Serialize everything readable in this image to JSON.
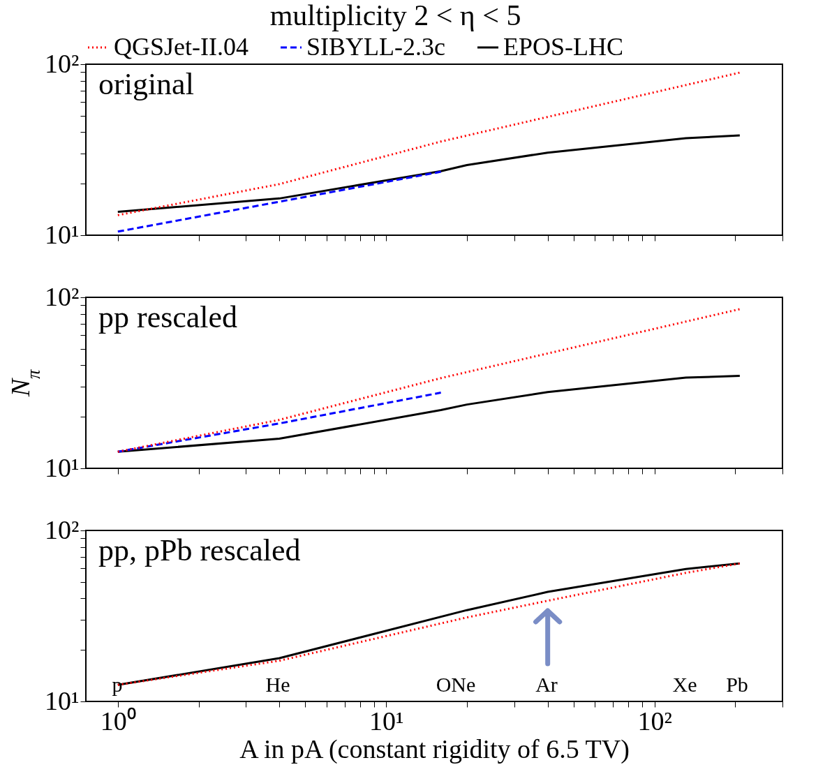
{
  "chart_data": [
    {
      "type": "line",
      "title": "multiplicity 2 < η < 5",
      "annotations": [
        "original"
      ],
      "log": "xy",
      "legend": "top",
      "tick_labels": "y",
      "grid": false,
      "xlim": [
        0.76,
        300
      ],
      "xticks": [
        {
          "value": 1,
          "label": null
        },
        {
          "value": 2,
          "label": null
        },
        {
          "value": 3,
          "label": null
        },
        {
          "value": 4,
          "label": null
        },
        {
          "value": 5,
          "label": null
        },
        {
          "value": 6,
          "label": null
        },
        {
          "value": 7,
          "label": null
        },
        {
          "value": 8,
          "label": null
        },
        {
          "value": 9,
          "label": null
        },
        {
          "value": 10,
          "label": null
        },
        {
          "value": 20,
          "label": null
        },
        {
          "value": 30,
          "label": null
        },
        {
          "value": 40,
          "label": null
        },
        {
          "value": 50,
          "label": null
        },
        {
          "value": 60,
          "label": null
        },
        {
          "value": 70,
          "label": null
        },
        {
          "value": 80,
          "label": null
        },
        {
          "value": 90,
          "label": null
        },
        {
          "value": 100,
          "label": null
        },
        {
          "value": 200,
          "label": null
        },
        {
          "value": 300,
          "label": null
        }
      ],
      "ylim": [
        10,
        100
      ],
      "yticks": [
        {
          "value": 10,
          "label": "10¹"
        },
        {
          "value": 20,
          "label": null
        },
        {
          "value": 30,
          "label": null
        },
        {
          "value": 40,
          "label": null
        },
        {
          "value": 50,
          "label": null
        },
        {
          "value": 60,
          "label": null
        },
        {
          "value": 70,
          "label": null
        },
        {
          "value": 80,
          "label": null
        },
        {
          "value": 90,
          "label": null
        },
        {
          "value": 100,
          "label": "10²"
        }
      ],
      "series": [
        {
          "name": "QGSJet-II.04",
          "color": "#ff0000",
          "line_style": "dotted",
          "x": [
            1,
            4,
            16,
            208
          ],
          "values": [
            13.1,
            19.9,
            35.3,
            89.3
          ]
        },
        {
          "name": "SIBYLL-2.3c",
          "color": "#0000ff",
          "line_style": "dashed",
          "x": [
            1,
            4,
            16
          ],
          "values": [
            10.5,
            15.7,
            23.5
          ]
        },
        {
          "name": "EPOS-LHC",
          "color": "#000000",
          "line_style": "solid",
          "x": [
            1,
            4,
            16,
            20,
            40,
            131,
            208
          ],
          "values": [
            13.7,
            16.4,
            23.7,
            25.7,
            30.4,
            36.9,
            38.3
          ]
        }
      ]
    },
    {
      "type": "line",
      "ylabel": "N$_{π}$",
      "annotations": [
        "pp rescaled"
      ],
      "log": "xy",
      "tick_labels": "y",
      "grid": false,
      "xlim": [
        0.76,
        300
      ],
      "xticks": [
        {
          "value": 1,
          "label": null
        },
        {
          "value": 2,
          "label": null
        },
        {
          "value": 3,
          "label": null
        },
        {
          "value": 4,
          "label": null
        },
        {
          "value": 5,
          "label": null
        },
        {
          "value": 6,
          "label": null
        },
        {
          "value": 7,
          "label": null
        },
        {
          "value": 8,
          "label": null
        },
        {
          "value": 9,
          "label": null
        },
        {
          "value": 10,
          "label": null
        },
        {
          "value": 20,
          "label": null
        },
        {
          "value": 30,
          "label": null
        },
        {
          "value": 40,
          "label": null
        },
        {
          "value": 50,
          "label": null
        },
        {
          "value": 60,
          "label": null
        },
        {
          "value": 70,
          "label": null
        },
        {
          "value": 80,
          "label": null
        },
        {
          "value": 90,
          "label": null
        },
        {
          "value": 100,
          "label": null
        },
        {
          "value": 200,
          "label": null
        },
        {
          "value": 300,
          "label": null
        }
      ],
      "ylim": [
        10,
        100
      ],
      "yticks": [
        {
          "value": 10,
          "label": "10¹"
        },
        {
          "value": 20,
          "label": null
        },
        {
          "value": 30,
          "label": null
        },
        {
          "value": 40,
          "label": null
        },
        {
          "value": 50,
          "label": null
        },
        {
          "value": 60,
          "label": null
        },
        {
          "value": 70,
          "label": null
        },
        {
          "value": 80,
          "label": null
        },
        {
          "value": 90,
          "label": null
        },
        {
          "value": 100,
          "label": "10²"
        }
      ],
      "series": [
        {
          "color": "#ff0000",
          "line_style": "dotted",
          "x": [
            1,
            4,
            16,
            208
          ],
          "values": [
            12.5,
            19.2,
            33.7,
            85.3
          ]
        },
        {
          "color": "#0000ff",
          "line_style": "dashed",
          "x": [
            1,
            4,
            16
          ],
          "values": [
            12.5,
            18.3,
            27.7
          ]
        },
        {
          "color": "#000000",
          "line_style": "solid",
          "x": [
            1,
            4,
            16,
            20,
            40,
            131,
            208
          ],
          "values": [
            12.5,
            14.9,
            21.9,
            23.6,
            27.9,
            33.9,
            34.7
          ]
        }
      ]
    },
    {
      "type": "line",
      "xlabel": "A in pA (constant rigidity of 6.5 TV)",
      "log": "xy",
      "grid": false,
      "annotations": [
        "pp, pPb rescaled",
        "p",
        "He",
        "ONe",
        "Ar",
        "Xe",
        "Pb"
      ],
      "xlim": [
        0.76,
        300
      ],
      "xticks": [
        {
          "value": 1,
          "label": "10⁰"
        },
        {
          "value": 2,
          "label": null
        },
        {
          "value": 3,
          "label": null
        },
        {
          "value": 4,
          "label": null
        },
        {
          "value": 5,
          "label": null
        },
        {
          "value": 6,
          "label": null
        },
        {
          "value": 7,
          "label": null
        },
        {
          "value": 8,
          "label": null
        },
        {
          "value": 9,
          "label": null
        },
        {
          "value": 10,
          "label": "10¹"
        },
        {
          "value": 20,
          "label": null
        },
        {
          "value": 30,
          "label": null
        },
        {
          "value": 40,
          "label": null
        },
        {
          "value": 50,
          "label": null
        },
        {
          "value": 60,
          "label": null
        },
        {
          "value": 70,
          "label": null
        },
        {
          "value": 80,
          "label": null
        },
        {
          "value": 90,
          "label": null
        },
        {
          "value": 100,
          "label": "10²"
        },
        {
          "value": 200,
          "label": null
        },
        {
          "value": 300,
          "label": null
        }
      ],
      "ylim": [
        10,
        100
      ],
      "yticks": [
        {
          "value": 10,
          "label": "10¹"
        },
        {
          "value": 20,
          "label": null
        },
        {
          "value": 30,
          "label": null
        },
        {
          "value": 40,
          "label": null
        },
        {
          "value": 50,
          "label": null
        },
        {
          "value": 60,
          "label": null
        },
        {
          "value": 70,
          "label": null
        },
        {
          "value": 80,
          "label": null
        },
        {
          "value": 90,
          "label": null
        },
        {
          "value": 100,
          "label": "10²"
        }
      ],
      "series": [
        {
          "color": "#ff0000",
          "line_style": "dotted",
          "x": [
            1,
            4,
            20,
            40,
            131,
            208
          ],
          "values": [
            12.5,
            17.3,
            31.0,
            38.8,
            56.5,
            64.1
          ]
        },
        {
          "color": "#000000",
          "line_style": "solid",
          "x": [
            1,
            4,
            20,
            40,
            131,
            208
          ],
          "values": [
            12.5,
            17.9,
            34.2,
            43.7,
            59.5,
            64.1
          ]
        }
      ]
    }
  ]
}
